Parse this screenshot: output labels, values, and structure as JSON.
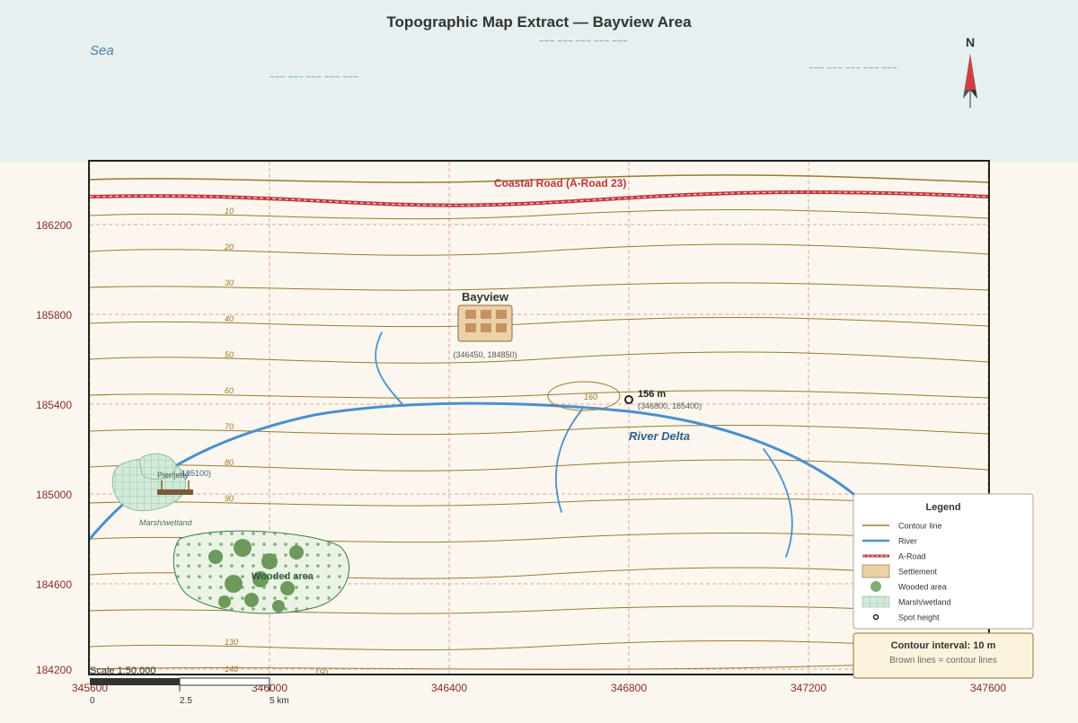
{
  "title": "Topographic Map Extract — Bayview Area",
  "sea_label": "Sea",
  "north_label": "N",
  "road_label": "Coastal Road (A-Road 23)",
  "settlement": {
    "name": "Bayview",
    "coords": "(346450, 184850)"
  },
  "spot_height": {
    "label": "156 m",
    "coords": "(346800, 185400)"
  },
  "summit_contour_label": "160",
  "river_label": "River Delta",
  "pier": {
    "label": "Pier/jetty",
    "coord_fragment": "185100)"
  },
  "marsh_label": "Marsh/wetland",
  "wood_label": "Wooded area",
  "grid": {
    "eastings": [
      "345600",
      "346000",
      "346400",
      "346800",
      "347200",
      "347600"
    ],
    "northings": [
      "186200",
      "185800",
      "185400",
      "185000",
      "184600",
      "184200"
    ]
  },
  "contour_labels": [
    "10",
    "20",
    "30",
    "40",
    "50",
    "60",
    "70",
    "80",
    "90",
    "130",
    "140",
    "150"
  ],
  "scale": {
    "title": "Scale 1:50,000",
    "ticks": [
      "0",
      "2.5",
      "5 km"
    ]
  },
  "legend": {
    "title": "Legend",
    "items": [
      {
        "label": "Contour line",
        "symbol": "contour-line"
      },
      {
        "label": "River",
        "symbol": "river-line"
      },
      {
        "label": "A-Road",
        "symbol": "road-line"
      },
      {
        "label": "Settlement",
        "symbol": "settlement-box"
      },
      {
        "label": "Wooded area",
        "symbol": "tree-dot"
      },
      {
        "label": "Marsh/wetland",
        "symbol": "marsh-grid"
      },
      {
        "label": "Spot height",
        "symbol": "spot-circle"
      }
    ]
  },
  "contour_note": {
    "title": "Contour interval: 10 m",
    "subtitle": "Brown lines = contour lines"
  },
  "colors": {
    "sea": "#e6f0f1",
    "land": "#fbf7ee",
    "contour": "#9a7a2e",
    "river": "#4b8fcf",
    "road": "#c0333b",
    "grid": "#e3a0a0",
    "label_red": "#8a2b2b",
    "wood": "#6d9a5c",
    "marsh": "#cfe6d7"
  }
}
